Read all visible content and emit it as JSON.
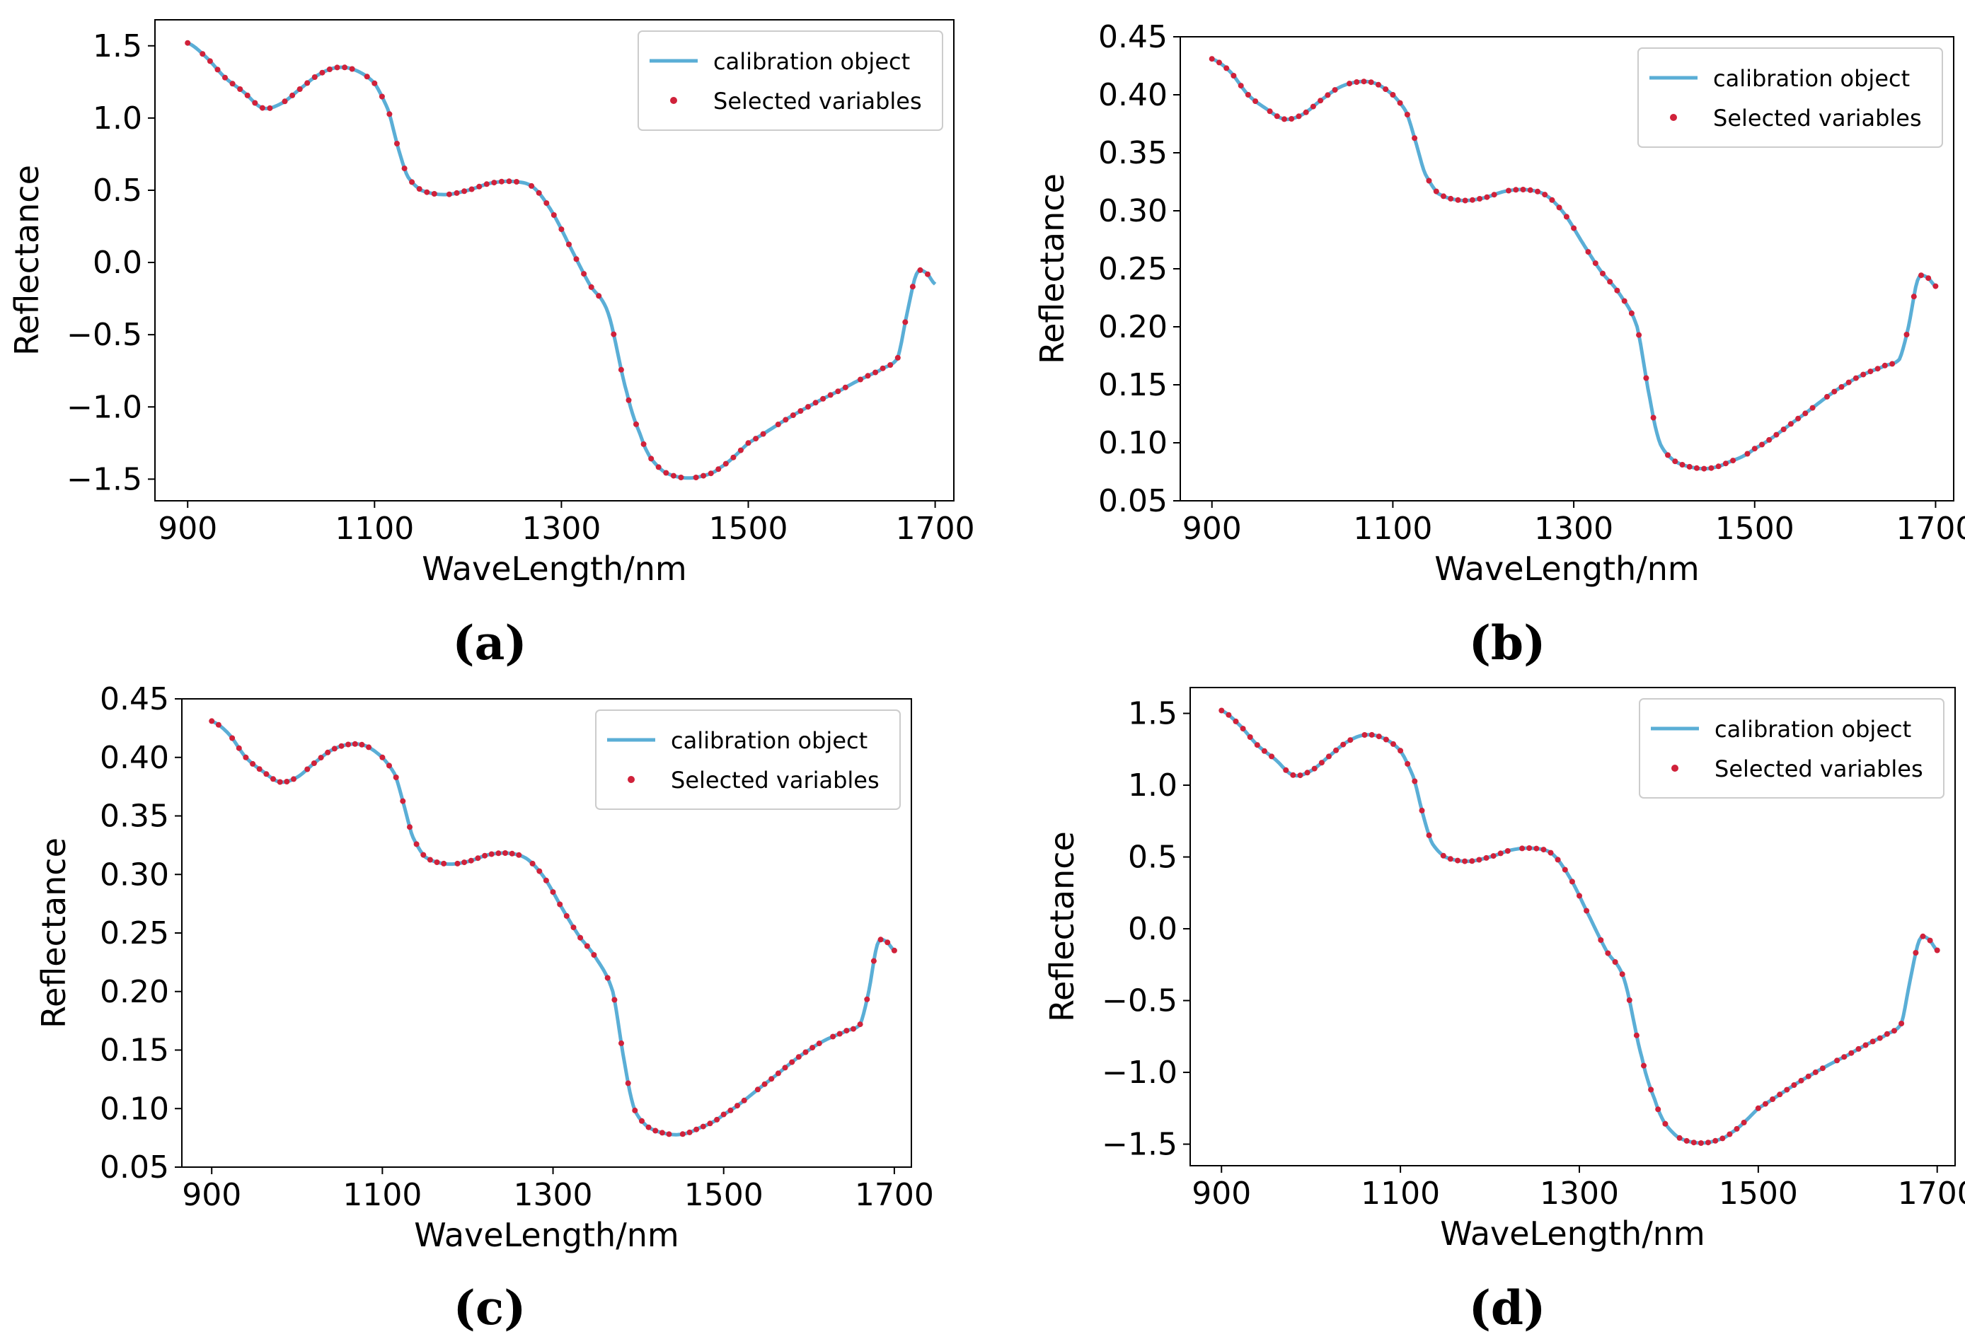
{
  "chart_data": [
    {
      "type": "line",
      "panel_label": "(a)",
      "title": "",
      "xlabel": "WaveLength/nm",
      "ylabel": "Reflectance",
      "xlim": [
        865,
        1720
      ],
      "ylim": [
        -1.65,
        1.68
      ],
      "xticks": [
        900,
        1100,
        1300,
        1500,
        1700
      ],
      "xtick_labels": [
        "900",
        "1100",
        "1300",
        "1500",
        "1700"
      ],
      "yticks": [
        1.5,
        1.0,
        0.5,
        0.0,
        -0.5,
        -1.0,
        -1.5
      ],
      "ytick_labels": [
        "1.5",
        "1.0",
        "0.5",
        "0.0",
        "−0.5",
        "−1.0",
        "−1.5"
      ],
      "legend": [
        "calibration object",
        "Selected variables"
      ],
      "legend_position": "top-right",
      "colors": {
        "line": "#5aaed6",
        "points": "#d0213a"
      },
      "x": [
        900,
        920,
        940,
        960,
        980,
        1000,
        1020,
        1040,
        1060,
        1080,
        1100,
        1115,
        1125,
        1135,
        1150,
        1175,
        1200,
        1225,
        1250,
        1270,
        1290,
        1310,
        1330,
        1350,
        1370,
        1385,
        1395,
        1410,
        1430,
        1450,
        1470,
        1500,
        1550,
        1600,
        1640,
        1660,
        1670,
        1680,
        1690,
        1700
      ],
      "series": [
        {
          "name": "calibration object",
          "values": [
            1.52,
            1.42,
            1.28,
            1.18,
            1.07,
            1.1,
            1.2,
            1.3,
            1.35,
            1.33,
            1.24,
            1.05,
            0.8,
            0.6,
            0.5,
            0.47,
            0.5,
            0.55,
            0.56,
            0.52,
            0.35,
            0.1,
            -0.15,
            -0.35,
            -0.9,
            -1.2,
            -1.35,
            -1.45,
            -1.49,
            -1.48,
            -1.42,
            -1.25,
            -1.05,
            -0.88,
            -0.75,
            -0.66,
            -0.35,
            -0.08,
            -0.07,
            -0.15
          ]
        }
      ]
    },
    {
      "type": "line",
      "panel_label": "(b)",
      "title": "",
      "xlabel": "WaveLength/nm",
      "ylabel": "Reflectance",
      "xlim": [
        865,
        1720
      ],
      "ylim": [
        0.05,
        0.45
      ],
      "xticks": [
        900,
        1100,
        1300,
        1500,
        1700
      ],
      "xtick_labels": [
        "900",
        "1100",
        "1300",
        "1500",
        "1700"
      ],
      "yticks": [
        0.45,
        0.4,
        0.35,
        0.3,
        0.25,
        0.2,
        0.15,
        0.1,
        0.05
      ],
      "ytick_labels": [
        "0.45",
        "0.40",
        "0.35",
        "0.30",
        "0.25",
        "0.20",
        "0.15",
        "0.10",
        "0.05"
      ],
      "legend": [
        "calibration object",
        "Selected variables"
      ],
      "legend_position": "top-right",
      "colors": {
        "line": "#5aaed6",
        "points": "#d0213a"
      },
      "x": [
        900,
        920,
        940,
        960,
        980,
        1000,
        1020,
        1040,
        1060,
        1080,
        1100,
        1115,
        1125,
        1135,
        1150,
        1175,
        1200,
        1225,
        1250,
        1270,
        1290,
        1310,
        1330,
        1350,
        1370,
        1385,
        1395,
        1410,
        1430,
        1450,
        1470,
        1500,
        1550,
        1600,
        1640,
        1660,
        1670,
        1680,
        1690,
        1700
      ],
      "series": [
        {
          "name": "calibration object",
          "values": [
            0.431,
            0.42,
            0.4,
            0.388,
            0.379,
            0.383,
            0.395,
            0.406,
            0.411,
            0.41,
            0.4,
            0.385,
            0.36,
            0.333,
            0.315,
            0.309,
            0.311,
            0.317,
            0.318,
            0.313,
            0.297,
            0.272,
            0.248,
            0.229,
            0.2,
            0.135,
            0.1,
            0.085,
            0.079,
            0.078,
            0.083,
            0.095,
            0.122,
            0.15,
            0.165,
            0.172,
            0.2,
            0.24,
            0.243,
            0.235
          ]
        }
      ]
    },
    {
      "type": "line",
      "panel_label": "(c)",
      "title": "",
      "xlabel": "WaveLength/nm",
      "ylabel": "Reflectance",
      "xlim": [
        865,
        1720
      ],
      "ylim": [
        0.05,
        0.45
      ],
      "xticks": [
        900,
        1100,
        1300,
        1500,
        1700
      ],
      "xtick_labels": [
        "900",
        "1100",
        "1300",
        "1500",
        "1700"
      ],
      "yticks": [
        0.45,
        0.4,
        0.35,
        0.3,
        0.25,
        0.2,
        0.15,
        0.1,
        0.05
      ],
      "ytick_labels": [
        "0.45",
        "0.40",
        "0.35",
        "0.30",
        "0.25",
        "0.20",
        "0.15",
        "0.10",
        "0.05"
      ],
      "legend": [
        "calibration object",
        "Selected variables"
      ],
      "legend_position": "top-right",
      "colors": {
        "line": "#5aaed6",
        "points": "#d0213a"
      },
      "x": [
        900,
        920,
        940,
        960,
        980,
        1000,
        1020,
        1040,
        1060,
        1080,
        1100,
        1115,
        1125,
        1135,
        1150,
        1175,
        1200,
        1225,
        1250,
        1270,
        1290,
        1310,
        1330,
        1350,
        1370,
        1385,
        1395,
        1410,
        1430,
        1450,
        1470,
        1500,
        1550,
        1600,
        1640,
        1660,
        1670,
        1680,
        1690,
        1700
      ],
      "series": [
        {
          "name": "calibration object",
          "values": [
            0.431,
            0.42,
            0.4,
            0.388,
            0.379,
            0.383,
            0.395,
            0.406,
            0.411,
            0.41,
            0.4,
            0.385,
            0.36,
            0.333,
            0.315,
            0.309,
            0.311,
            0.317,
            0.318,
            0.313,
            0.297,
            0.272,
            0.248,
            0.229,
            0.2,
            0.135,
            0.1,
            0.085,
            0.079,
            0.078,
            0.083,
            0.095,
            0.122,
            0.15,
            0.165,
            0.172,
            0.2,
            0.24,
            0.243,
            0.235
          ]
        }
      ]
    },
    {
      "type": "line",
      "panel_label": "(d)",
      "title": "",
      "xlabel": "WaveLength/nm",
      "ylabel": "Reflectance",
      "xlim": [
        865,
        1720
      ],
      "ylim": [
        -1.65,
        1.68
      ],
      "xticks": [
        900,
        1100,
        1300,
        1500,
        1700
      ],
      "xtick_labels": [
        "900",
        "1100",
        "1300",
        "1500",
        "1700"
      ],
      "yticks": [
        1.5,
        1.0,
        0.5,
        0.0,
        -0.5,
        -1.0,
        -1.5
      ],
      "ytick_labels": [
        "1.5",
        "1.0",
        "0.5",
        "0.0",
        "−0.5",
        "−1.0",
        "−1.5"
      ],
      "legend": [
        "calibration object",
        "Selected variables"
      ],
      "legend_position": "top-right",
      "colors": {
        "line": "#5aaed6",
        "points": "#d0213a"
      },
      "x": [
        900,
        920,
        940,
        960,
        980,
        1000,
        1020,
        1040,
        1060,
        1080,
        1100,
        1115,
        1125,
        1135,
        1150,
        1175,
        1200,
        1225,
        1250,
        1270,
        1290,
        1310,
        1330,
        1350,
        1370,
        1385,
        1395,
        1410,
        1430,
        1450,
        1470,
        1500,
        1550,
        1600,
        1640,
        1660,
        1670,
        1680,
        1690,
        1700
      ],
      "series": [
        {
          "name": "calibration object",
          "values": [
            1.52,
            1.42,
            1.28,
            1.18,
            1.07,
            1.1,
            1.2,
            1.3,
            1.35,
            1.33,
            1.24,
            1.05,
            0.8,
            0.6,
            0.5,
            0.47,
            0.5,
            0.55,
            0.56,
            0.52,
            0.35,
            0.1,
            -0.15,
            -0.35,
            -0.9,
            -1.2,
            -1.35,
            -1.45,
            -1.49,
            -1.48,
            -1.42,
            -1.25,
            -1.05,
            -0.88,
            -0.75,
            -0.66,
            -0.35,
            -0.08,
            -0.07,
            -0.15
          ]
        }
      ]
    }
  ]
}
